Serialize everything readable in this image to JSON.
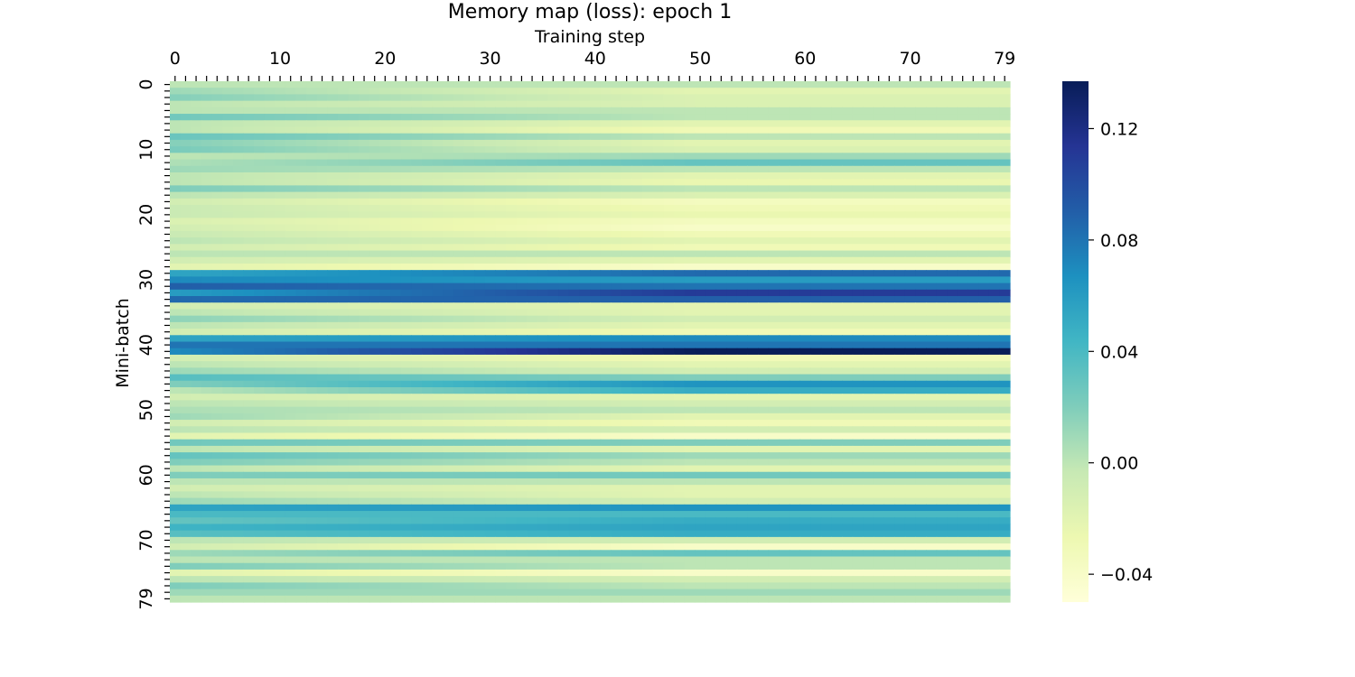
{
  "chart_data": {
    "type": "heatmap",
    "title": "Memory map (loss): epoch 1",
    "xlabel": "Training step",
    "ylabel": "Mini-batch",
    "x_range": [
      0,
      79
    ],
    "y_range": [
      0,
      79
    ],
    "x_tick_labels": [
      "0",
      "10",
      "20",
      "30",
      "40",
      "50",
      "60",
      "70",
      "79"
    ],
    "y_tick_labels": [
      "0",
      "10",
      "20",
      "30",
      "40",
      "50",
      "60",
      "70",
      "79"
    ],
    "x_axis_position": "top",
    "colormap": "YlGnBu",
    "colormap_stops": [
      "#ffffd9",
      "#edf8b1",
      "#c7e9b4",
      "#7fcdbb",
      "#41b6c4",
      "#1d91c0",
      "#225ea8",
      "#253494",
      "#081d58"
    ],
    "value_range": [
      -0.05,
      0.137
    ],
    "colorbar_ticks": [
      {
        "value": 0.12,
        "label": "0.12"
      },
      {
        "value": 0.08,
        "label": "0.08"
      },
      {
        "value": 0.04,
        "label": "0.04"
      },
      {
        "value": 0.0,
        "label": "0.00"
      },
      {
        "value": -0.04,
        "label": "−0.04"
      }
    ],
    "row_start_values": [
      0.0,
      0.01,
      0.018,
      0.0,
      0.0,
      0.025,
      0.0,
      0.0,
      0.028,
      0.018,
      0.022,
      0.0,
      0.005,
      0.01,
      0.0,
      0.0,
      0.02,
      0.0,
      -0.01,
      -0.005,
      -0.005,
      -0.015,
      -0.01,
      -0.005,
      0.0,
      -0.01,
      0.0,
      -0.01,
      -0.02,
      0.055,
      0.07,
      0.09,
      0.06,
      0.085,
      -0.01,
      0.0,
      0.015,
      0.0,
      -0.01,
      0.055,
      0.08,
      0.07,
      -0.01,
      0.0,
      0.01,
      0.035,
      0.02,
      0.0,
      -0.01,
      0.0,
      0.005,
      0.01,
      -0.01,
      0.0,
      -0.02,
      0.025,
      0.0,
      0.03,
      0.02,
      0.0,
      0.02,
      0.0,
      -0.01,
      0.0,
      0.01,
      0.055,
      0.04,
      0.03,
      0.045,
      0.035,
      0.0,
      -0.01,
      0.01,
      0.0,
      0.02,
      -0.02,
      0.0,
      0.02,
      0.01,
      0.0
    ],
    "row_end_values": [
      0.0,
      -0.02,
      -0.015,
      -0.015,
      0.0,
      0.0,
      -0.02,
      -0.03,
      0.0,
      -0.02,
      -0.015,
      0.01,
      0.03,
      0.0,
      -0.02,
      -0.025,
      0.0,
      -0.015,
      -0.035,
      -0.03,
      -0.025,
      -0.035,
      -0.04,
      -0.03,
      -0.02,
      -0.03,
      0.0,
      -0.02,
      -0.04,
      0.085,
      0.06,
      0.08,
      0.11,
      0.09,
      -0.02,
      -0.02,
      -0.01,
      -0.02,
      -0.03,
      0.07,
      0.08,
      0.137,
      -0.03,
      -0.02,
      -0.01,
      0.02,
      0.065,
      0.05,
      -0.02,
      -0.01,
      0.0,
      -0.02,
      -0.03,
      -0.01,
      -0.04,
      0.02,
      -0.02,
      0.01,
      0.0,
      -0.02,
      0.025,
      0.0,
      -0.02,
      -0.02,
      -0.01,
      0.065,
      0.04,
      0.05,
      0.055,
      0.05,
      -0.01,
      -0.04,
      0.03,
      0.0,
      0.0,
      -0.04,
      -0.01,
      0.0,
      0.01,
      0.0
    ]
  }
}
